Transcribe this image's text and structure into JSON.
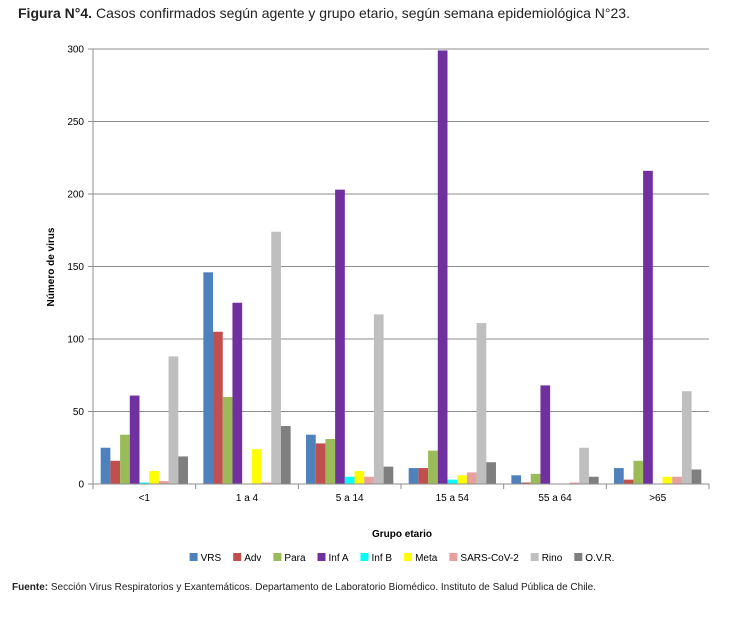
{
  "figure": {
    "label": "Figura N°4.",
    "caption": " Casos confirmados según agente y grupo etario, según semana epidemiológica N°23."
  },
  "source": {
    "label": "Fuente:",
    "text": " Sección Virus Respiratorios y Exantemáticos. Departamento de Laboratorio Biomédico. Instituto de Salud Pública de Chile."
  },
  "chart_data": {
    "type": "bar",
    "xlabel": "Grupo etario",
    "ylabel": "Número de virus",
    "ylim": [
      0,
      300
    ],
    "yticks": [
      0,
      50,
      100,
      150,
      200,
      250,
      300
    ],
    "grid": true,
    "legend_position": "bottom",
    "categories": [
      "<1",
      "1 a 4",
      "5 a 14",
      "15 a 54",
      "55 a 64",
      ">65"
    ],
    "series": [
      {
        "name": "VRS",
        "color": "#4f81bd",
        "values": [
          25,
          146,
          34,
          11,
          6,
          11
        ]
      },
      {
        "name": "Adv",
        "color": "#c0504d",
        "values": [
          16,
          105,
          28,
          11,
          1,
          3
        ]
      },
      {
        "name": "Para",
        "color": "#9bbb59",
        "values": [
          34,
          60,
          31,
          23,
          7,
          16
        ]
      },
      {
        "name": "Inf A",
        "color": "#7030a0",
        "values": [
          61,
          125,
          203,
          299,
          68,
          216
        ]
      },
      {
        "name": "Inf B",
        "color": "#00ffff",
        "values": [
          1,
          0,
          5,
          3,
          0,
          0
        ]
      },
      {
        "name": "Meta",
        "color": "#ffff00",
        "values": [
          9,
          24,
          9,
          6,
          0,
          5
        ]
      },
      {
        "name": "SARS-CoV-2",
        "color": "#e6a09e",
        "values": [
          2,
          1,
          5,
          8,
          1,
          5
        ]
      },
      {
        "name": "Rino",
        "color": "#bfbfbf",
        "values": [
          88,
          174,
          117,
          111,
          25,
          64
        ]
      },
      {
        "name": "O.V.R.",
        "color": "#7f7f7f",
        "values": [
          19,
          40,
          12,
          15,
          5,
          10
        ]
      }
    ]
  }
}
